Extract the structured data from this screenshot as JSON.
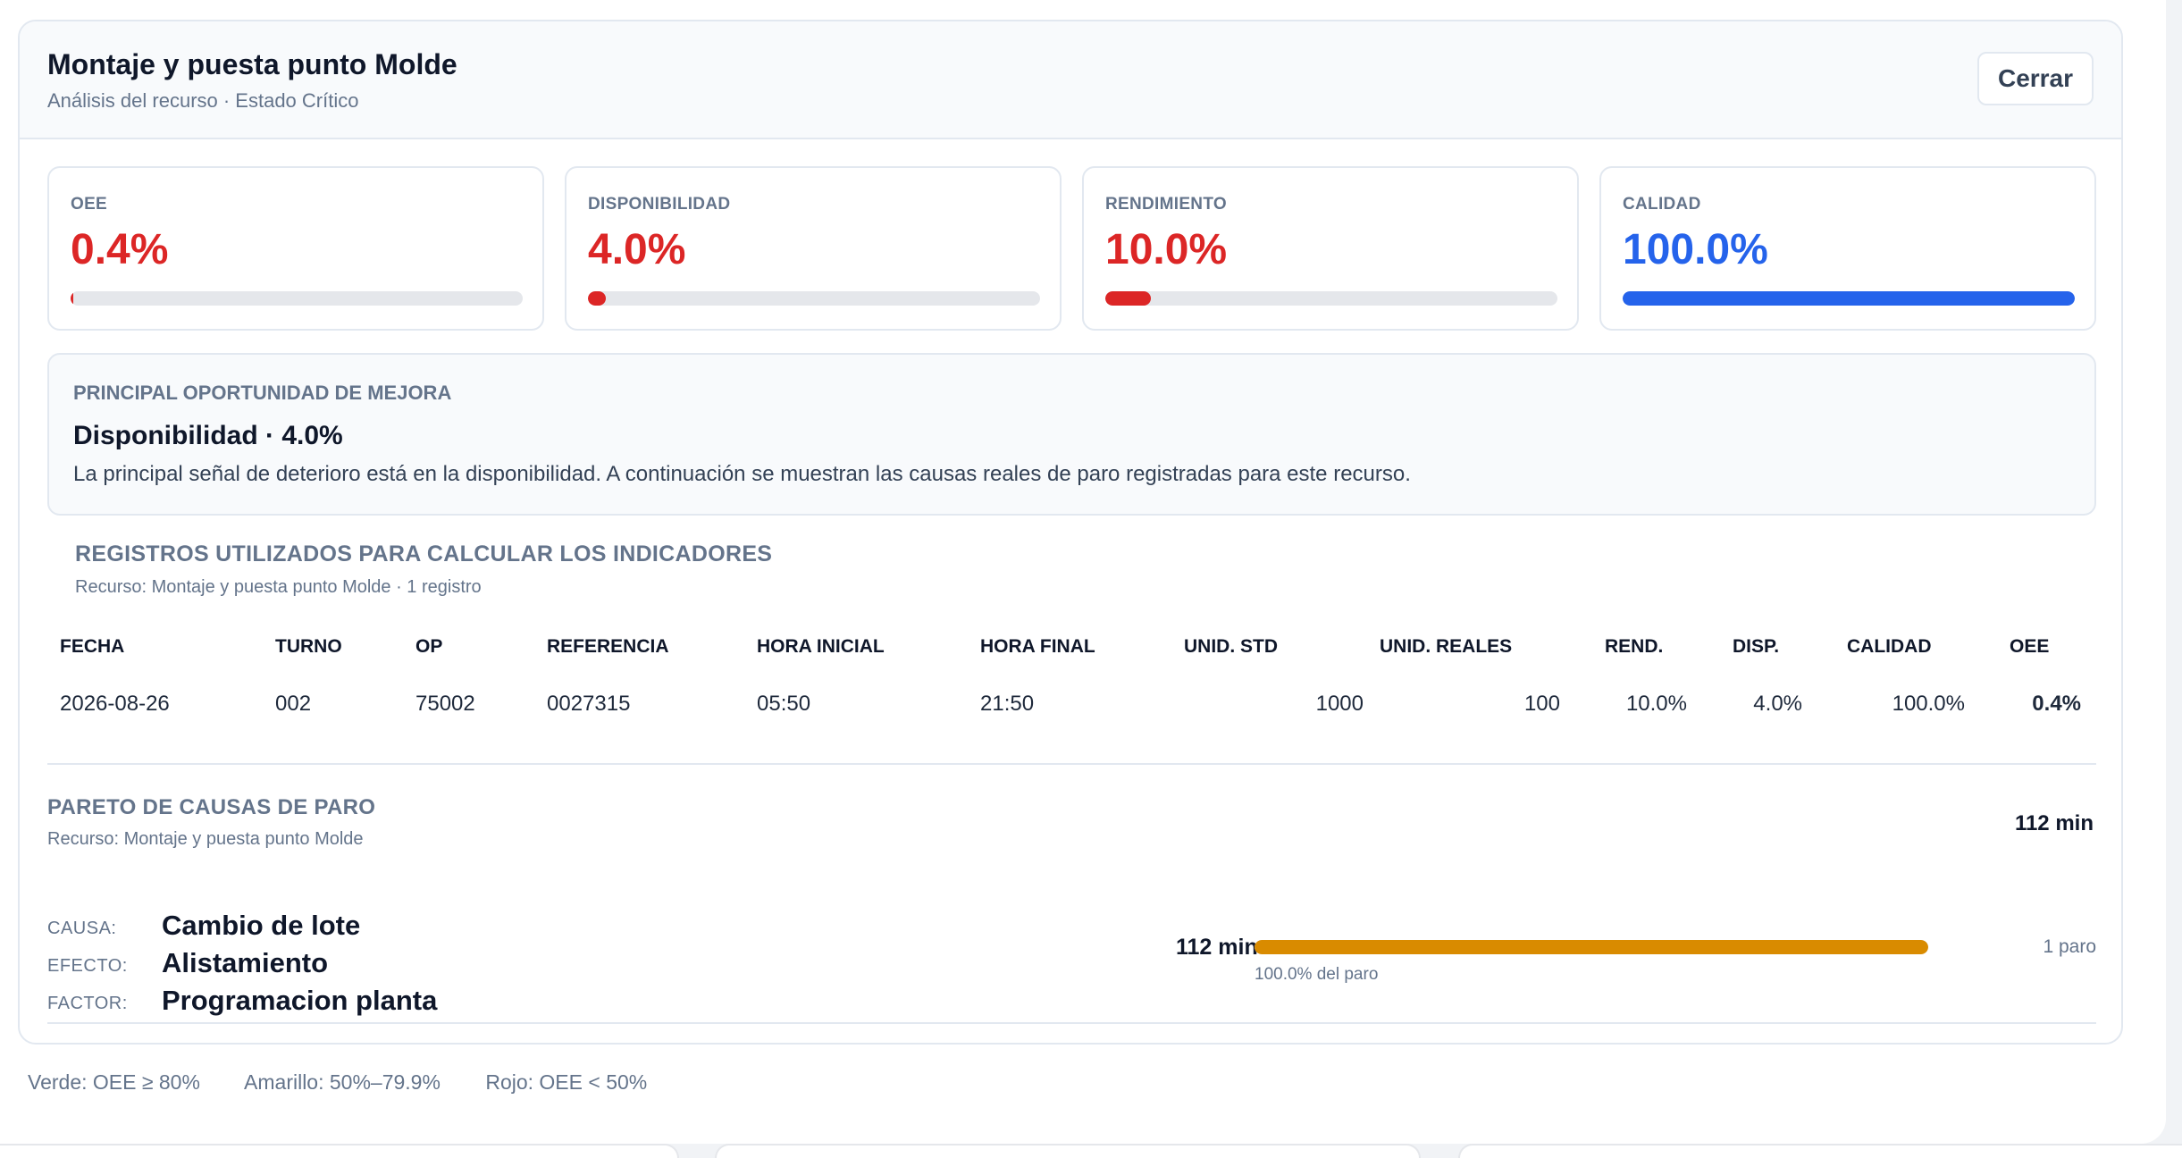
{
  "header": {
    "title": "Montaje y puesta punto Molde",
    "subtitle": "Análisis del recurso · Estado Crítico",
    "close_label": "Cerrar"
  },
  "kpis": [
    {
      "label": "OEE",
      "value": "0.4%",
      "fill": 0.004,
      "color": "#dc2626"
    },
    {
      "label": "DISPONIBILIDAD",
      "value": "4.0%",
      "fill": 0.04,
      "color": "#dc2626"
    },
    {
      "label": "RENDIMIENTO",
      "value": "10.0%",
      "fill": 0.1,
      "color": "#dc2626"
    },
    {
      "label": "CALIDAD",
      "value": "100.0%",
      "fill": 1.0,
      "color": "#2563eb"
    }
  ],
  "opportunity": {
    "label": "PRINCIPAL OPORTUNIDAD DE MEJORA",
    "title": "Disponibilidad · 4.0%",
    "text": "La principal señal de deterioro está en la disponibilidad. A continuación se muestran las causas reales de paro registradas para este recurso."
  },
  "records": {
    "title": "REGISTROS UTILIZADOS PARA CALCULAR LOS INDICADORES",
    "subtitle": "Recurso: Montaje y puesta punto Molde · 1 registro",
    "columns": [
      "FECHA",
      "TURNO",
      "OP",
      "REFERENCIA",
      "HORA INICIAL",
      "HORA FINAL",
      "UNID. STD",
      "UNID. REALES",
      "REND.",
      "DISP.",
      "CALIDAD",
      "OEE"
    ],
    "rows": [
      [
        "2026-08-26",
        "002",
        "75002",
        "0027315",
        "05:50",
        "21:50",
        "1000",
        "100",
        "10.0%",
        "4.0%",
        "100.0%",
        "0.4%"
      ]
    ]
  },
  "pareto": {
    "title": "PARETO DE CAUSAS DE PARO",
    "subtitle": "Recurso: Montaje y puesta punto Molde",
    "total": "112 min",
    "causes": [
      {
        "causa_label": "CAUSA:",
        "causa": "Cambio de lote",
        "efecto_label": "EFECTO:",
        "efecto": "Alistamiento",
        "factor_label": "FACTOR:",
        "factor": "Programacion planta",
        "minutes": "112 min",
        "share_label": "100.0% del paro",
        "share": 1.0,
        "count": "1 paro",
        "color": "#d98b00"
      }
    ]
  },
  "legend": {
    "green": "Verde: OEE ≥ 80%",
    "yellow": "Amarillo: 50%–79.9%",
    "red": "Rojo: OEE < 50%"
  }
}
